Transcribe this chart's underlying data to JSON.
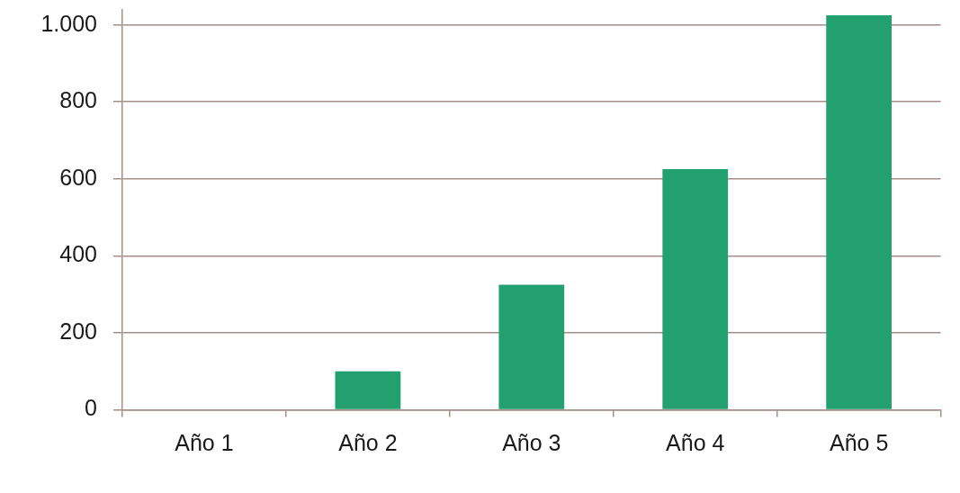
{
  "chart_data": {
    "type": "bar",
    "categories": [
      "Año 1",
      "Año 2",
      "Año 3",
      "Año 4",
      "Año 5"
    ],
    "values": [
      0,
      100,
      325,
      625,
      1025
    ],
    "color": "#22a06f",
    "ylim": [
      0,
      1040
    ],
    "yticks": [
      0,
      200,
      400,
      600,
      800,
      {
        "value": 1000,
        "label": "1.000"
      }
    ],
    "grid": "y",
    "legend": false
  }
}
